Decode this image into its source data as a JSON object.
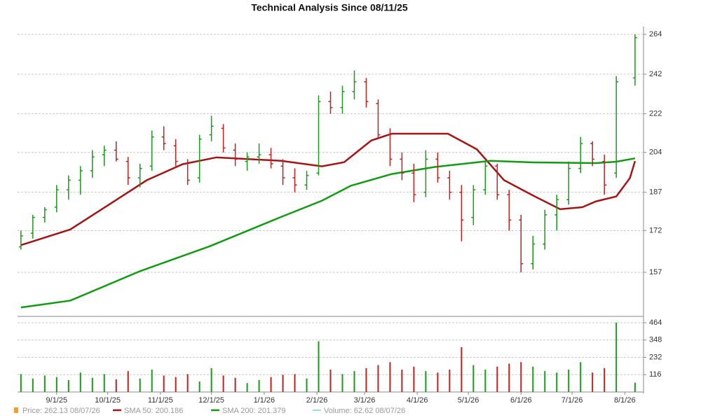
{
  "chart_data": [
    {
      "type": "ohlc",
      "title": "Technical Analysis Since 08/11/25",
      "log_scale": true,
      "grid": true,
      "up_color": "#1a9a1a",
      "down_color": "#c02020",
      "xlim": [
        "2025-08-09",
        "2026-08-12"
      ],
      "ylim": [
        142.6,
        268.5
      ],
      "yticks": [
        157,
        172,
        187,
        204,
        222,
        242,
        264
      ],
      "x": [
        "2025-08-11",
        "2025-08-18",
        "2025-08-25",
        "2025-09-01",
        "2025-09-08",
        "2025-09-15",
        "2025-09-22",
        "2025-09-29",
        "2025-10-06",
        "2025-10-13",
        "2025-10-20",
        "2025-10-27",
        "2025-11-03",
        "2025-11-10",
        "2025-11-17",
        "2025-11-24",
        "2025-12-01",
        "2025-12-08",
        "2025-12-15",
        "2025-12-22",
        "2025-12-29",
        "2026-01-05",
        "2026-01-12",
        "2026-01-19",
        "2026-01-26",
        "2026-02-02",
        "2026-02-09",
        "2026-02-16",
        "2026-02-23",
        "2026-03-02",
        "2026-03-09",
        "2026-03-16",
        "2026-03-23",
        "2026-03-30",
        "2026-04-06",
        "2026-04-13",
        "2026-04-20",
        "2026-04-27",
        "2026-05-04",
        "2026-05-11",
        "2026-05-18",
        "2026-05-25",
        "2026-06-01",
        "2026-06-08",
        "2026-06-15",
        "2026-06-22",
        "2026-06-29",
        "2026-07-06",
        "2026-07-13",
        "2026-07-20",
        "2026-07-27",
        "2026-08-07"
      ],
      "open": [
        166,
        171,
        177,
        181,
        188,
        192,
        196,
        203,
        205,
        200,
        193,
        198,
        211,
        207,
        199,
        193,
        212,
        215,
        205,
        200,
        202,
        203,
        198,
        193,
        190,
        195,
        228,
        225,
        233,
        238,
        227,
        212,
        201,
        195,
        187,
        201,
        193,
        187,
        177,
        188,
        198,
        186,
        176,
        160,
        167,
        178,
        184,
        197,
        208,
        200,
        195,
        240
      ],
      "high": [
        172,
        178,
        181,
        190,
        194,
        198,
        205,
        207,
        209,
        202,
        199,
        214,
        216,
        210,
        201,
        212,
        221,
        217,
        208,
        204,
        208,
        206,
        201,
        197,
        196,
        231,
        233,
        236,
        244,
        240,
        229,
        215,
        204,
        199,
        205,
        204,
        196,
        190,
        190,
        200,
        199,
        188,
        178,
        170,
        180,
        186,
        200,
        211,
        209,
        203,
        241,
        264
      ],
      "low": [
        165,
        169,
        175,
        179,
        184,
        186,
        193,
        198,
        200,
        190,
        189,
        196,
        205,
        198,
        190,
        191,
        209,
        204,
        198,
        196,
        199,
        197,
        190,
        187,
        188,
        194,
        222,
        222,
        229,
        225,
        210,
        198,
        192,
        183,
        185,
        191,
        184,
        168,
        174,
        186,
        184,
        172,
        157,
        158,
        165,
        172,
        182,
        195,
        198,
        186,
        193,
        236
      ],
      "close": [
        170,
        177,
        180,
        188,
        192,
        196,
        202,
        205,
        201,
        193,
        197,
        211,
        208,
        200,
        192,
        210,
        216,
        206,
        201,
        202,
        203,
        199,
        193,
        190,
        194,
        228,
        225,
        233,
        238,
        228,
        212,
        201,
        195,
        186,
        201,
        193,
        187,
        176,
        188,
        198,
        186,
        176,
        160,
        167,
        178,
        184,
        197,
        208,
        201,
        190,
        238,
        262.13
      ],
      "lines": [
        {
          "name": "SMA 50",
          "color": "#a41414",
          "x": [
            "2025-08-11",
            "2025-09-09",
            "2025-10-04",
            "2025-10-24",
            "2025-11-14",
            "2025-12-04",
            "2026-01-11",
            "2026-02-04",
            "2026-02-17",
            "2026-03-05",
            "2026-03-17",
            "2026-04-19",
            "2026-05-06",
            "2026-05-22",
            "2026-06-08",
            "2026-06-24",
            "2026-07-07",
            "2026-07-15",
            "2026-07-27",
            "2026-08-04",
            "2026-08-07"
          ],
          "values": [
            166.6,
            172.4,
            183,
            192,
            198.8,
            201.8,
            200.3,
            197.9,
            199.7,
            209.4,
            212.5,
            212.5,
            205.4,
            192,
            185.7,
            180.2,
            181,
            183.3,
            185.3,
            192.9,
            200.186
          ]
        },
        {
          "name": "SMA 200",
          "color": "#139a13",
          "x": [
            "2025-08-11",
            "2025-09-09",
            "2025-10-20",
            "2025-11-30",
            "2026-01-11",
            "2026-02-04",
            "2026-02-21",
            "2026-03-17",
            "2026-04-11",
            "2026-05-14",
            "2026-06-08",
            "2026-07-15",
            "2026-07-27",
            "2026-08-07"
          ],
          "values": [
            145.4,
            147.6,
            157.4,
            166.2,
            177.2,
            183.6,
            189.7,
            194.6,
            197.6,
            200.3,
            199.6,
            199.3,
            199.9,
            201.379
          ]
        }
      ],
      "legend": [
        {
          "label": "Price: 262.13  08/07/26",
          "color": "#f0a030"
        },
        {
          "label": "SMA 50: 200.186",
          "color": "#a41414"
        },
        {
          "label": "SMA 200: 201.379",
          "color": "#139a13"
        },
        {
          "label": "Volume: 62.62  08/07/26",
          "color": "#30c0c0"
        }
      ]
    },
    {
      "type": "bar",
      "grid": true,
      "xlim": [
        "2025-08-09",
        "2026-08-12"
      ],
      "ylim": [
        0,
        478
      ],
      "yticks": [
        116,
        232,
        348,
        464
      ],
      "values": [
        120,
        90,
        110,
        100,
        80,
        130,
        95,
        120,
        85,
        140,
        90,
        150,
        110,
        100,
        120,
        70,
        160,
        110,
        95,
        60,
        80,
        100,
        115,
        120,
        90,
        340,
        150,
        120,
        140,
        160,
        180,
        200,
        150,
        170,
        140,
        130,
        150,
        300,
        180,
        150,
        170,
        190,
        200,
        170,
        140,
        130,
        150,
        200,
        130,
        160,
        464,
        62.62
      ],
      "xticks": [
        {
          "value": "2025-09-01",
          "label": "9/1/25"
        },
        {
          "value": "2025-10-01",
          "label": "10/1/25"
        },
        {
          "value": "2025-11-01",
          "label": "11/1/25"
        },
        {
          "value": "2025-12-01",
          "label": "12/1/25"
        },
        {
          "value": "2026-01-01",
          "label": "1/1/26"
        },
        {
          "value": "2026-02-01",
          "label": "2/1/26"
        },
        {
          "value": "2026-03-01",
          "label": "3/1/26"
        },
        {
          "value": "2026-04-01",
          "label": "4/1/26"
        },
        {
          "value": "2026-05-01",
          "label": "5/1/26"
        },
        {
          "value": "2026-06-01",
          "label": "6/1/26"
        },
        {
          "value": "2026-07-01",
          "label": "7/1/26"
        },
        {
          "value": "2026-08-01",
          "label": "8/1/26"
        }
      ]
    }
  ]
}
